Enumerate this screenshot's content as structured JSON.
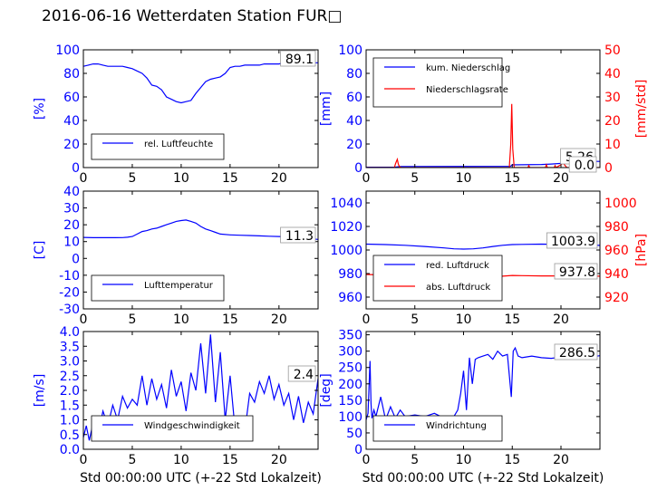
{
  "title": "2016-06-16 Wetterdaten Station FUR□",
  "colors": {
    "left_axis": "#0000ff",
    "right_axis": "#ff0000",
    "line1": "#0000ff",
    "line2": "#ff0000"
  },
  "xlabel": "Std 00:00:00 UTC (+-22 Std Lokalzeit)",
  "chart_data": [
    {
      "id": "humidity",
      "type": "line",
      "xlim": [
        0,
        24
      ],
      "xticks": [
        0,
        5,
        10,
        15,
        20
      ],
      "ylim": [
        0,
        100
      ],
      "yticks": [
        0,
        20,
        40,
        60,
        80,
        100
      ],
      "ylabel": "[%]",
      "annotation": "89.1",
      "legend_pos": "lower-left",
      "series": [
        {
          "name": "rel. Luftfeuchte",
          "axis": "left",
          "color": "#0000ff",
          "x": [
            0,
            0.5,
            1,
            1.5,
            2,
            2.5,
            3,
            3.5,
            4,
            4.5,
            5,
            5.5,
            6,
            6.5,
            7,
            7.5,
            8,
            8.5,
            9,
            9.5,
            10,
            10.5,
            11,
            11.5,
            12,
            12.5,
            13,
            13.5,
            14,
            14.5,
            15,
            15.5,
            16,
            16.5,
            17,
            17.5,
            18,
            18.5,
            19,
            19.5,
            20,
            20.5,
            21,
            21.5,
            22,
            22.5,
            23,
            23.5,
            24
          ],
          "y": [
            86,
            87,
            88,
            88,
            87,
            86,
            86,
            86,
            86,
            85,
            84,
            82,
            80,
            76,
            70,
            69,
            66,
            60,
            58,
            56,
            55,
            56,
            57,
            63,
            68,
            73,
            75,
            76,
            77,
            80,
            85,
            86,
            86,
            87,
            87,
            87,
            87,
            88,
            88,
            88,
            88,
            89,
            89,
            89,
            89,
            89,
            89,
            89,
            89
          ]
        }
      ]
    },
    {
      "id": "precip",
      "type": "line",
      "xlim": [
        0,
        24
      ],
      "xticks": [
        0,
        5,
        10,
        15,
        20
      ],
      "ylim": [
        0,
        100
      ],
      "yticks": [
        0,
        20,
        40,
        60,
        80,
        100
      ],
      "ylabel": "[mm]",
      "ylim_right": [
        0,
        50
      ],
      "yticks_right": [
        0,
        10,
        20,
        30,
        40,
        50
      ],
      "ylabel_right": "[mm/std]",
      "annotation": "5.26",
      "annotation2": "0.0",
      "legend_pos": "upper-left",
      "series": [
        {
          "name": "kum. Niederschlag",
          "axis": "left",
          "color": "#0000ff",
          "x": [
            0,
            3,
            3.5,
            14.8,
            15,
            18,
            19,
            20,
            21,
            22,
            23,
            24
          ],
          "y": [
            0.3,
            0.4,
            0.9,
            1.0,
            2.3,
            2.6,
            3.0,
            3.5,
            4.3,
            5.0,
            5.2,
            5.26
          ]
        },
        {
          "name": "Niederschlagsrate",
          "axis": "right",
          "color": "#ff0000",
          "x": [
            0,
            2.9,
            3.0,
            3.1,
            3.2,
            3.3,
            3.4,
            3.6,
            14.7,
            14.85,
            14.95,
            15.05,
            15.2,
            16.6,
            16.7,
            16.8,
            18.4,
            18.5,
            18.6,
            19.3,
            19.4,
            19.5,
            20.1,
            20.2,
            20.3,
            20.6,
            24
          ],
          "y": [
            0,
            0,
            1.5,
            2.5,
            3.5,
            1.5,
            0.5,
            0,
            0,
            10,
            27,
            8,
            0,
            0,
            0.8,
            0,
            0,
            1.2,
            0,
            0,
            0.8,
            0,
            1.5,
            3,
            1.5,
            0,
            0
          ]
        }
      ]
    },
    {
      "id": "temperature",
      "type": "line",
      "xlim": [
        0,
        24
      ],
      "xticks": [
        0,
        5,
        10,
        15,
        20
      ],
      "ylim": [
        -30,
        40
      ],
      "yticks": [
        -30,
        -20,
        -10,
        0,
        10,
        20,
        30,
        40
      ],
      "ylabel": "[C]",
      "annotation": "11.3",
      "legend_pos": "lower-left",
      "series": [
        {
          "name": "Lufttemperatur",
          "axis": "left",
          "color": "#0000ff",
          "x": [
            0,
            1,
            2,
            3,
            4,
            4.5,
            5,
            5.5,
            6,
            6.5,
            7,
            7.5,
            8,
            8.5,
            9,
            9.5,
            10,
            10.5,
            11,
            11.5,
            12,
            12.5,
            13,
            13.5,
            14,
            15,
            16,
            17,
            18,
            19,
            20,
            21,
            22,
            23,
            24
          ],
          "y": [
            12.5,
            12.3,
            12.3,
            12.3,
            12.4,
            12.6,
            13.0,
            14.5,
            16.0,
            16.5,
            17.5,
            18.0,
            19.0,
            20.0,
            21.0,
            22.0,
            22.5,
            22.8,
            22.0,
            21.0,
            19.0,
            17.5,
            16.5,
            15.5,
            14.5,
            14.0,
            13.8,
            13.6,
            13.4,
            13.2,
            13.0,
            12.8,
            12.5,
            11.8,
            11.3
          ]
        }
      ]
    },
    {
      "id": "pressure",
      "type": "line",
      "xlim": [
        0,
        24
      ],
      "xticks": [
        0,
        5,
        10,
        15,
        20
      ],
      "ylim": [
        950,
        1050
      ],
      "yticks": [
        960,
        980,
        1000,
        1020,
        1040
      ],
      "ylabel": "",
      "ylim_right": [
        910,
        1010
      ],
      "yticks_right": [
        920,
        940,
        960,
        980,
        1000
      ],
      "ylabel_right": "[hPa]",
      "annotation": "1003.9",
      "annotation2": "937.8",
      "legend_pos": "lower-left",
      "series": [
        {
          "name": "red. Luftdruck",
          "axis": "left",
          "color": "#0000ff",
          "x": [
            0,
            2,
            4,
            6,
            8,
            9,
            10,
            11,
            12,
            13,
            14,
            15,
            16,
            18,
            20,
            22,
            24
          ],
          "y": [
            1005,
            1004.6,
            1004.0,
            1003.0,
            1001.8,
            1001.0,
            1000.8,
            1001.0,
            1001.8,
            1003.0,
            1004.0,
            1004.6,
            1004.8,
            1005.0,
            1004.8,
            1004.3,
            1003.9
          ]
        },
        {
          "name": "abs. Luftdruck",
          "axis": "right",
          "color": "#ff0000",
          "x": [
            0,
            2,
            4,
            6,
            8,
            10,
            12,
            14,
            15,
            16,
            18,
            20,
            22,
            24
          ],
          "y": [
            939.2,
            938.8,
            938.2,
            937.6,
            937.3,
            937.2,
            937.4,
            937.8,
            938.4,
            938.2,
            938.0,
            938.0,
            937.9,
            937.8
          ]
        }
      ]
    },
    {
      "id": "wind_speed",
      "type": "line",
      "xlim": [
        0,
        24
      ],
      "xticks": [
        0,
        5,
        10,
        15,
        20
      ],
      "ylim": [
        0,
        4
      ],
      "yticks": [
        0.0,
        0.5,
        1.0,
        1.5,
        2.0,
        2.5,
        3.0,
        3.5,
        4.0
      ],
      "ylabel": "[m/s]",
      "annotation": "2.4",
      "legend_pos": "lower-center",
      "series": [
        {
          "name": "Windgeschwindigkeit",
          "axis": "left",
          "color": "#0000ff",
          "x": [
            0,
            0.3,
            0.6,
            1,
            1.5,
            2,
            2.5,
            3,
            3.5,
            4,
            4.5,
            5,
            5.5,
            6,
            6.5,
            7,
            7.5,
            8,
            8.5,
            9,
            9.5,
            10,
            10.5,
            11,
            11.5,
            12,
            12.5,
            13,
            13.5,
            14,
            14.5,
            15,
            15.5,
            16,
            16.5,
            17,
            17.5,
            18,
            18.5,
            19,
            19.5,
            20,
            20.5,
            21,
            21.5,
            22,
            22.5,
            23,
            23.5,
            24
          ],
          "y": [
            0.4,
            0.8,
            0.3,
            0.9,
            0.5,
            1.3,
            0.8,
            1.5,
            1.0,
            1.8,
            1.4,
            1.7,
            1.5,
            2.5,
            1.5,
            2.4,
            1.7,
            2.2,
            1.4,
            2.7,
            1.8,
            2.3,
            1.3,
            2.6,
            2.0,
            3.6,
            1.9,
            3.9,
            1.6,
            3.3,
            1.0,
            2.5,
            0.7,
            1.0,
            0.6,
            1.9,
            1.6,
            2.3,
            1.9,
            2.5,
            1.7,
            2.2,
            1.5,
            1.9,
            1.0,
            1.8,
            0.9,
            1.6,
            1.2,
            2.4
          ]
        }
      ]
    },
    {
      "id": "wind_dir",
      "type": "line",
      "xlim": [
        0,
        24
      ],
      "xticks": [
        0,
        5,
        10,
        15,
        20
      ],
      "ylim": [
        0,
        360
      ],
      "yticks": [
        0,
        50,
        100,
        150,
        200,
        250,
        300,
        350
      ],
      "ylabel": "[deg]",
      "annotation": "286.5",
      "legend_pos": "lower-center",
      "series": [
        {
          "name": "Windrichtung",
          "axis": "left",
          "color": "#0000ff",
          "x": [
            0,
            0.2,
            0.4,
            0.5,
            0.6,
            0.8,
            1,
            1.5,
            2,
            2.5,
            3,
            3.5,
            4,
            5,
            6,
            7,
            8,
            9,
            9.4,
            9.7,
            10,
            10.3,
            10.6,
            10.9,
            11.2,
            11.5,
            12,
            12.5,
            13,
            13.5,
            14,
            14.5,
            14.9,
            15.1,
            15.3,
            15.6,
            16,
            17,
            18,
            19,
            20,
            21,
            22,
            23,
            24
          ],
          "y": [
            90,
            110,
            270,
            140,
            95,
            120,
            100,
            160,
            90,
            130,
            95,
            120,
            100,
            105,
            100,
            110,
            95,
            100,
            120,
            170,
            240,
            120,
            280,
            200,
            275,
            280,
            285,
            290,
            275,
            300,
            285,
            290,
            160,
            300,
            310,
            285,
            280,
            285,
            280,
            278,
            282,
            278,
            280,
            282,
            286
          ]
        }
      ]
    }
  ]
}
